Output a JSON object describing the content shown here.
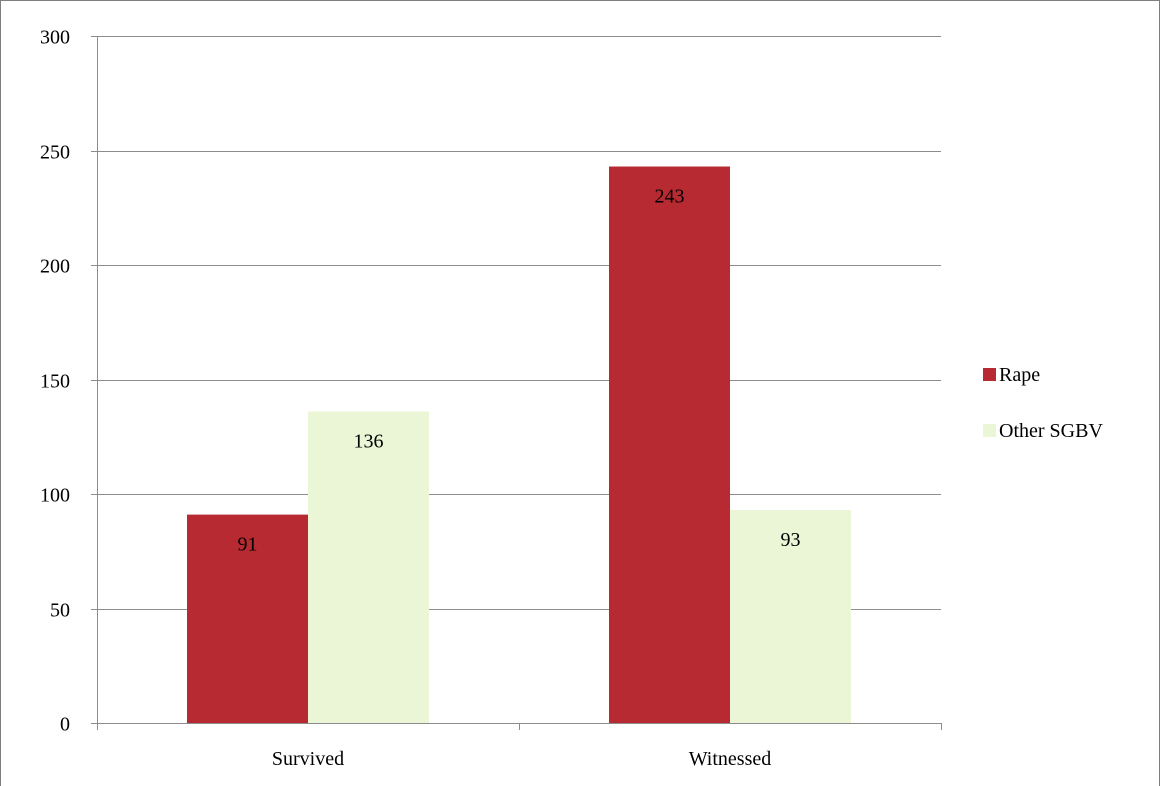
{
  "chart_data": {
    "type": "bar",
    "categories": [
      "Survived",
      "Witnessed"
    ],
    "series": [
      {
        "name": "Rape",
        "values": [
          91,
          243
        ],
        "color": "#b72a31"
      },
      {
        "name": "Other SGBV",
        "values": [
          136,
          93
        ],
        "color": "#ebf6d6"
      }
    ],
    "ylim": [
      0,
      300
    ],
    "yticks": [
      0,
      50,
      100,
      150,
      200,
      250,
      300
    ],
    "grid": true,
    "legend_position": "right",
    "data_labels": true,
    "title": "",
    "xlabel": "",
    "ylabel": ""
  }
}
